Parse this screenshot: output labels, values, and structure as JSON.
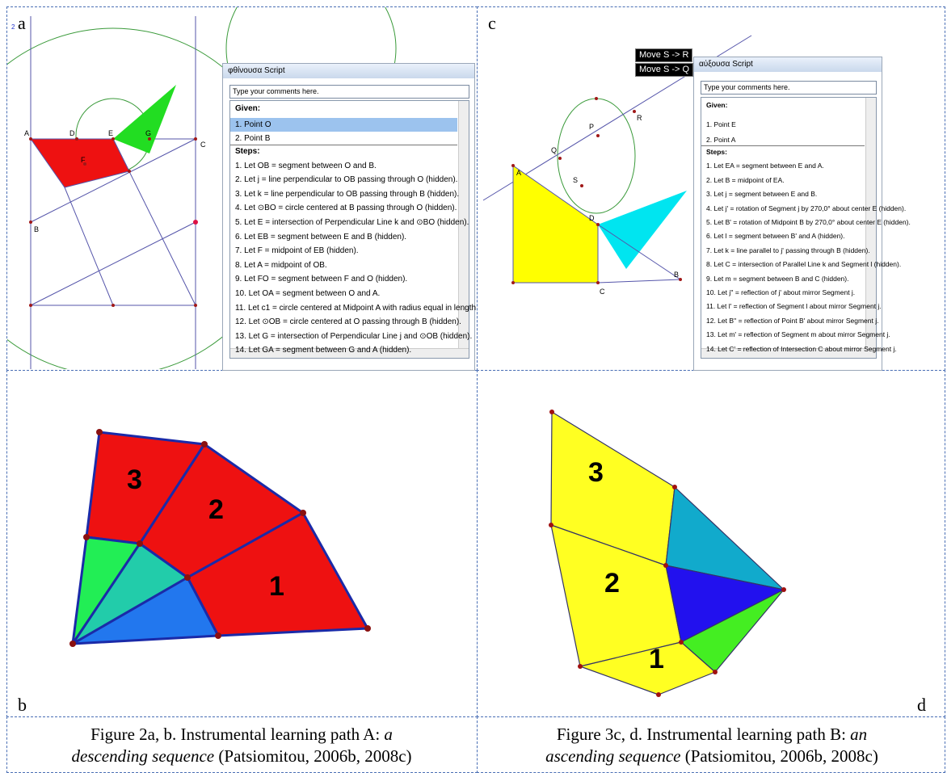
{
  "panel_a": {
    "label": "a",
    "points": [
      "A",
      "D",
      "E",
      "G",
      "F",
      "C",
      "B"
    ],
    "window": {
      "title": "φθίνουσα Script",
      "comment": "Type your comments here.",
      "given_title": "Given:",
      "given": [
        "1. Point O",
        "2. Point B"
      ],
      "steps_title": "Steps:",
      "steps": [
        "1. Let OB = segment between O and B.",
        "2. Let j = line perpendicular to OB passing through O (hidden).",
        "3. Let k = line perpendicular to OB passing through B (hidden).",
        "4. Let ⊙BO = circle centered at B passing through O (hidden).",
        "5. Let E = intersection of Perpendicular Line k and ⊙BO (hidden).",
        "6. Let EB = segment between E and B (hidden).",
        "7. Let F = midpoint of EB (hidden).",
        "8. Let A = midpoint of OB.",
        "9. Let FO = segment between F and O (hidden).",
        "10. Let OA = segment between O and A.",
        "11. Let c1 = circle centered at Midpoint A with radius equal in length",
        "12. Let ⊙OB = circle centered at O passing through B (hidden).",
        "13. Let G = intersection of Perpendicular Line j and ⊙OB (hidden).",
        "14. Let GA = segment between G and A (hidden)."
      ]
    }
  },
  "panel_c": {
    "label": "c",
    "buttons": [
      "Move S -> R",
      "Move S -> Q"
    ],
    "points": [
      "P",
      "R",
      "Q",
      "S",
      "A",
      "D",
      "C",
      "B"
    ],
    "window": {
      "title": "αύξουσα Script",
      "comment": "Type your comments here.",
      "given_title": "Given:",
      "given": [
        "1. Point E",
        "2. Point A"
      ],
      "steps_title": "Steps:",
      "steps": [
        "1. Let EA = segment between E and A.",
        "2. Let B = midpoint of EA.",
        "3. Let j = segment between E and B.",
        "4. Let j' = rotation of Segment j by 270,0° about center E (hidden).",
        "5. Let B' = rotation of Midpoint B by 270,0° about center E (hidden).",
        "6. Let l = segment between B' and A (hidden).",
        "7. Let k = line parallel to j' passing through B (hidden).",
        "8. Let C = intersection of Parallel Line k and Segment l (hidden).",
        "9. Let m = segment between B and C (hidden).",
        "10. Let j'' = reflection of j' about mirror Segment j.",
        "11. Let l' = reflection of Segment l about mirror Segment j.",
        "12. Let B'' = reflection of Point B' about mirror Segment j.",
        "13. Let m' = reflection of Segment m about mirror Segment j.",
        "14. Let C' = reflection of Intersection C about mirror Segment j."
      ]
    }
  },
  "panel_b": {
    "label": "b",
    "regions": [
      "3",
      "2",
      "1"
    ]
  },
  "panel_d": {
    "label": "d",
    "regions": [
      "3",
      "2",
      "1"
    ]
  },
  "captions": [
    {
      "line1": "Figure 2a, b. Instrumental learning path A: ",
      "line1_italic": "a",
      "line2_italic": "descending sequence",
      "line2": " (Patsiomitou, 2006b, 2008c)"
    },
    {
      "line1": "Figure 3c, d. Instrumental learning path B: ",
      "line1_italic": "an",
      "line2_italic": "ascending sequence",
      "line2": " (Patsiomitou, 2006b, 2008c)"
    }
  ]
}
